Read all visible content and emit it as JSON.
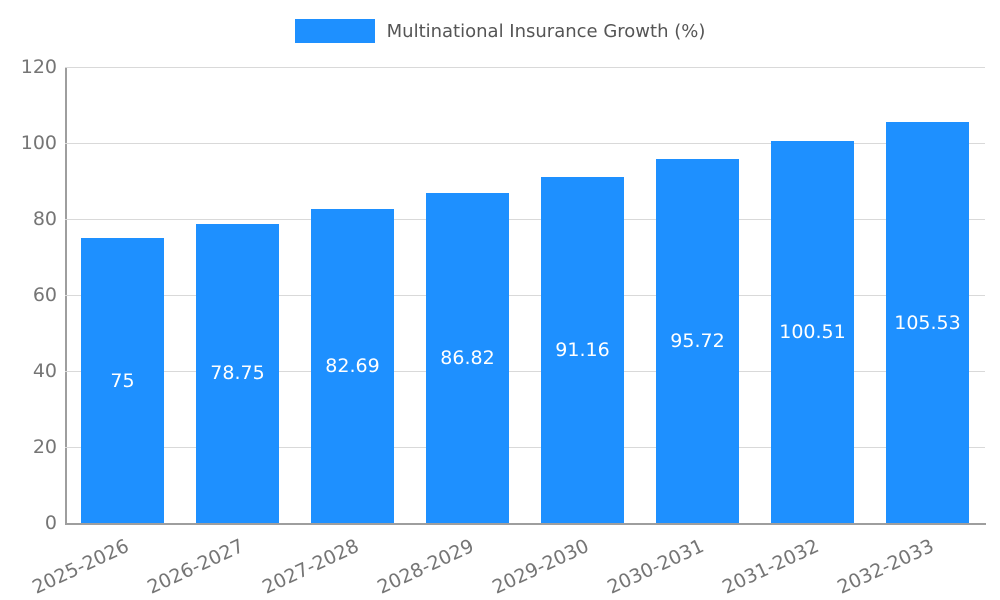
{
  "legend": {
    "label": "Multinational Insurance Growth (%)",
    "swatch_color": "#1e90ff"
  },
  "chart_data": {
    "type": "bar",
    "title": "Multinational Insurance Growth (%)",
    "categories": [
      "2025-2026",
      "2026-2027",
      "2027-2028",
      "2028-2029",
      "2029-2030",
      "2030-2031",
      "2031-2032",
      "2032-2033"
    ],
    "values": [
      75,
      78.75,
      82.69,
      86.82,
      91.16,
      95.72,
      100.51,
      105.53
    ],
    "value_labels": [
      "75",
      "78.75",
      "82.69",
      "86.82",
      "91.16",
      "95.72",
      "100.51",
      "105.53"
    ],
    "xlabel": "",
    "ylabel": "",
    "ylim": [
      0,
      120
    ],
    "yticks": [
      0,
      20,
      40,
      60,
      80,
      100,
      120
    ],
    "bar_color": "#1e90ff",
    "value_label_color": "#ffffff",
    "grid": true,
    "legend_position": "top"
  }
}
